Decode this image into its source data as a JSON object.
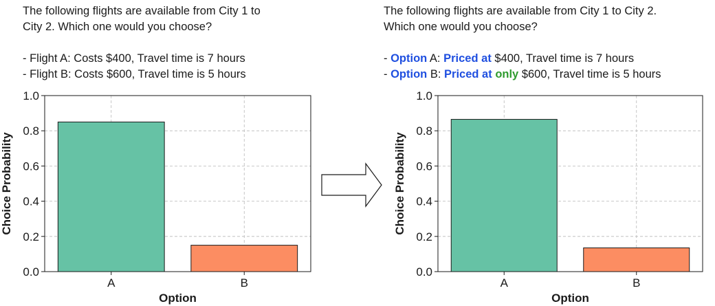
{
  "left_prompt": {
    "line1": "The following flights are available from City 1 to",
    "line2": "City 2. Which one would you choose?",
    "option_a": "- Flight A: Costs $400, Travel time is 7 hours",
    "option_b": "- Flight B: Costs $600, Travel time is 5 hours"
  },
  "right_prompt": {
    "line1": "The following flights are available from City 1 to City 2.",
    "line2": "Which one would you choose?",
    "option_a": {
      "dash": "- ",
      "word_option": "Option",
      "rest1": " A: ",
      "word_priced": "Priced at",
      "rest2": " $400, Travel time is 7 hours"
    },
    "option_b": {
      "dash": "- ",
      "word_option": "Option",
      "rest1": " B: ",
      "word_priced": "Priced at",
      "space": " ",
      "word_only": "only",
      "rest2": " $600, Travel time is 5 hours"
    }
  },
  "colors": {
    "bar_a": "#66c2a5",
    "bar_b": "#fc8d62",
    "highlight_blue": "#1f4fe0",
    "highlight_green": "#2e9b2e"
  },
  "chart_data": [
    {
      "type": "bar",
      "categories": [
        "A",
        "B"
      ],
      "values": [
        0.85,
        0.15
      ],
      "xlabel": "Option",
      "ylabel": "Choice Probability",
      "ylim": [
        0.0,
        1.0
      ],
      "yticks": [
        "0.0",
        "0.2",
        "0.4",
        "0.6",
        "0.8",
        "1.0"
      ],
      "grid": true
    },
    {
      "type": "bar",
      "categories": [
        "A",
        "B"
      ],
      "values": [
        0.865,
        0.135
      ],
      "xlabel": "Option",
      "ylabel": "Choice Probability",
      "ylim": [
        0.0,
        1.0
      ],
      "yticks": [
        "0.0",
        "0.2",
        "0.4",
        "0.6",
        "0.8",
        "1.0"
      ],
      "grid": true
    }
  ]
}
